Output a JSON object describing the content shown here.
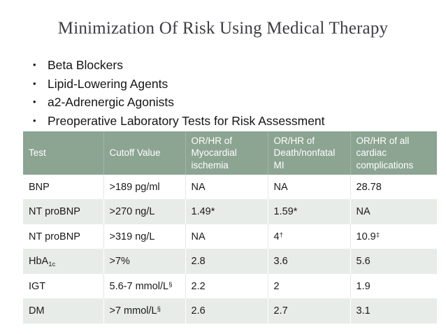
{
  "slide": {
    "title": "Minimization Of Risk Using Medical Therapy",
    "bullets": [
      "Beta Blockers",
      "Lipid-Lowering Agents",
      "a2-Adrenergic Agonists",
      "Preoperative Laboratory Tests for Risk Assessment"
    ]
  },
  "table": {
    "headers": [
      "Test",
      "Cutoff Value",
      "OR/HR of Myocardial ischemia",
      "OR/HR of Death/nonfatal MI",
      "OR/HR of all cardiac complications"
    ],
    "rows": [
      [
        {
          "text": "BNP"
        },
        {
          "text": ">189 pg/ml"
        },
        {
          "text": "NA"
        },
        {
          "text": "NA"
        },
        {
          "text": "28.78"
        }
      ],
      [
        {
          "text": "NT proBNP"
        },
        {
          "text": ">270 ng/L"
        },
        {
          "text": "1.49*"
        },
        {
          "text": "1.59*"
        },
        {
          "text": "NA"
        }
      ],
      [
        {
          "text": "NT proBNP"
        },
        {
          "text": ">319 ng/L"
        },
        {
          "text": "NA"
        },
        {
          "text": "4",
          "sup": "†"
        },
        {
          "text": "10.9",
          "sup": "‡"
        }
      ],
      [
        {
          "text": "HbA",
          "sub": "1c"
        },
        {
          "text": ">7%"
        },
        {
          "text": "2.8"
        },
        {
          "text": "3.6"
        },
        {
          "text": "5.6"
        }
      ],
      [
        {
          "text": "IGT"
        },
        {
          "text": "5.6-7 mmol/L",
          "sup": "§"
        },
        {
          "text": "2.2"
        },
        {
          "text": "2"
        },
        {
          "text": "1.9"
        }
      ],
      [
        {
          "text": "DM"
        },
        {
          "text": ">7 mmol/L",
          "sup": "§"
        },
        {
          "text": "2.6"
        },
        {
          "text": "2.7"
        },
        {
          "text": "3.1"
        }
      ]
    ]
  },
  "colors": {
    "header_bg": "#8ca492",
    "header_text": "#ffffff",
    "stripe_bg": "#e8ece8",
    "body_text": "#1a1a1a",
    "title_text": "#3d3d42"
  }
}
